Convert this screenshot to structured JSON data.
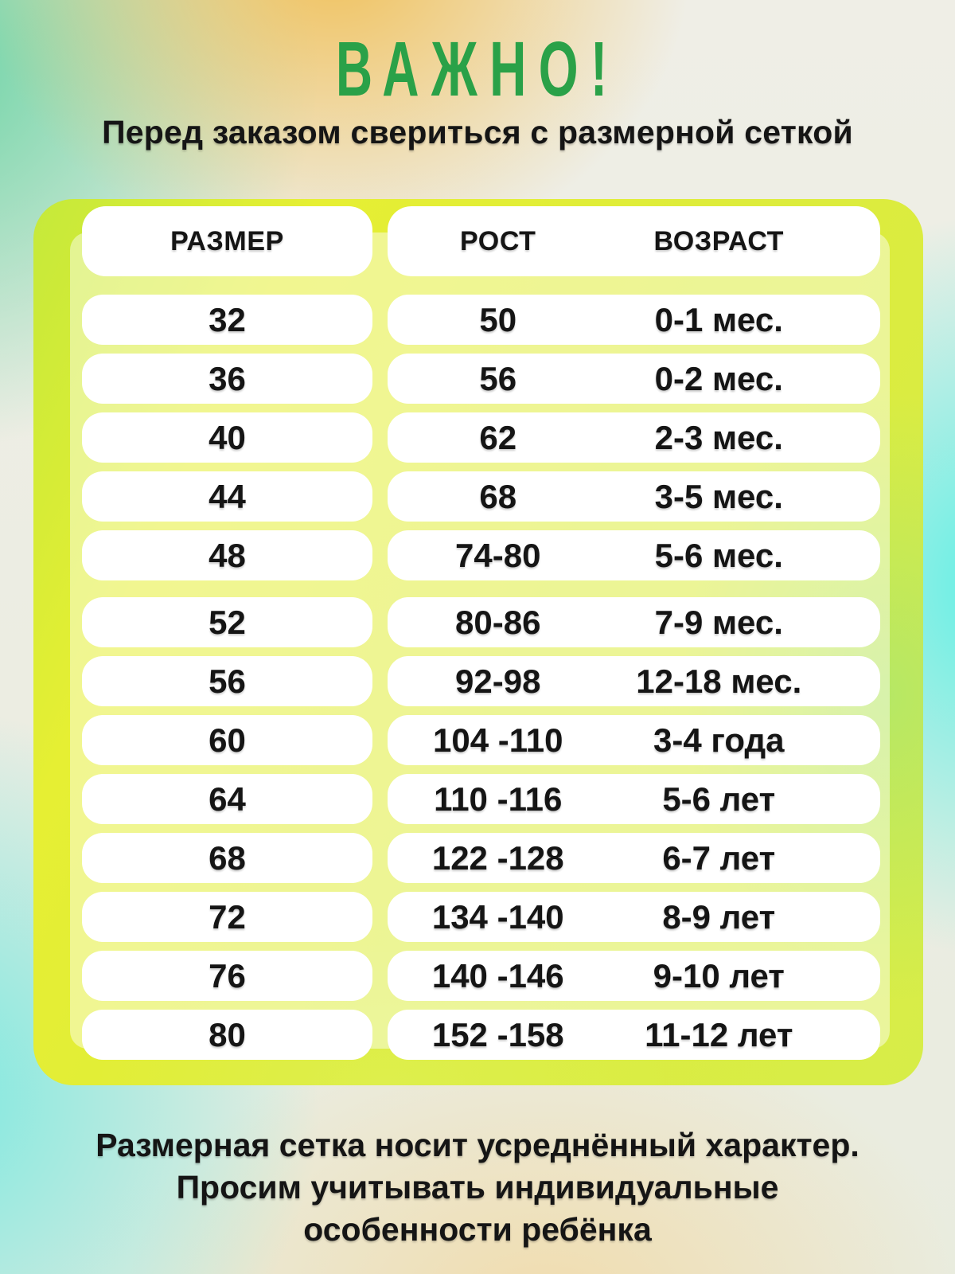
{
  "colors": {
    "title_green": "#2aa148",
    "panel_yellow_green": "#ddec3b",
    "pill_white": "#ffffff",
    "text_black": "#151515",
    "bg_orange": "#f0bf55",
    "bg_mint": "#66d2a2",
    "bg_cyan": "#4cf0e6"
  },
  "chart_data": {
    "type": "table",
    "title": "ВАЖНО!",
    "subtitle": "Перед заказом свериться с размерной сеткой",
    "columns": [
      "РАЗМЕР",
      "РОСТ",
      "ВОЗРАСТ"
    ],
    "rows": [
      {
        "size": "32",
        "height": "50",
        "age": "0-1 мес."
      },
      {
        "size": "36",
        "height": "56",
        "age": "0-2 мес."
      },
      {
        "size": "40",
        "height": "62",
        "age": "2-3 мес."
      },
      {
        "size": "44",
        "height": "68",
        "age": "3-5 мес."
      },
      {
        "size": "48",
        "height": "74-80",
        "age": "5-6 мес."
      },
      {
        "size": "52",
        "height": "80-86",
        "age": "7-9 мес."
      },
      {
        "size": "56",
        "height": "92-98",
        "age": "12-18 мес."
      },
      {
        "size": "60",
        "height": "104 -110",
        "age": "3-4 года"
      },
      {
        "size": "64",
        "height": "110 -116",
        "age": "5-6 лет"
      },
      {
        "size": "68",
        "height": "122 -128",
        "age": "6-7 лет"
      },
      {
        "size": "72",
        "height": "134 -140",
        "age": "8-9 лет"
      },
      {
        "size": "76",
        "height": "140 -146",
        "age": "9-10 лет"
      },
      {
        "size": "80",
        "height": "152 -158",
        "age": "11-12 лет"
      }
    ],
    "footnote": [
      "Размерная сетка носит усреднённый характер.",
      "Просим учитывать индивидуальные",
      "особенности ребёнка"
    ]
  }
}
